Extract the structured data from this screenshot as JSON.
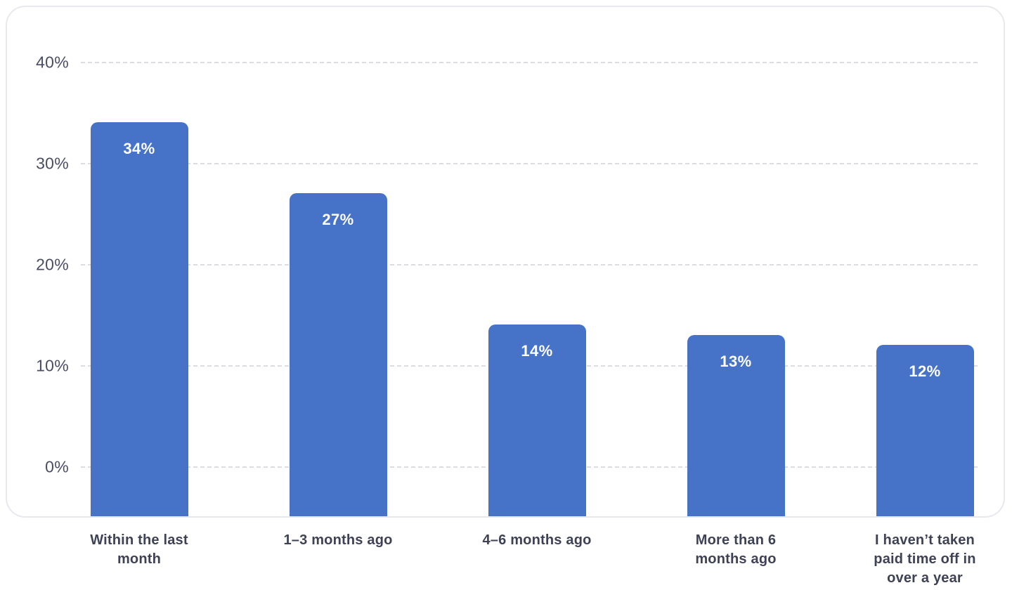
{
  "chart_data": {
    "type": "bar",
    "title": "",
    "xlabel": "",
    "ylabel": "",
    "categories": [
      "Within the last\nmonth",
      "1–3 months ago",
      "4–6 months ago",
      "More than 6\nmonths ago",
      "I haven’t taken\npaid time off in\nover a year"
    ],
    "values": [
      34,
      27,
      14,
      13,
      12
    ],
    "value_labels": [
      "34%",
      "27%",
      "14%",
      "13%",
      "12%"
    ],
    "y_ticks": [
      0,
      10,
      20,
      30,
      40
    ],
    "y_tick_labels": [
      "0%",
      "10%",
      "20%",
      "30%",
      "40%"
    ],
    "ylim": [
      -5,
      45
    ],
    "grid": "horizontal-dashed",
    "legend": "none",
    "colors": {
      "bar": "#4673C8",
      "bar_value_text": "#FFFFFF",
      "axis_tick_text": "#4A4D63",
      "category_text": "#3E4254",
      "gridline": "#DADCE1",
      "card_border": "#E7E9EE",
      "background": "#FFFFFF"
    }
  }
}
